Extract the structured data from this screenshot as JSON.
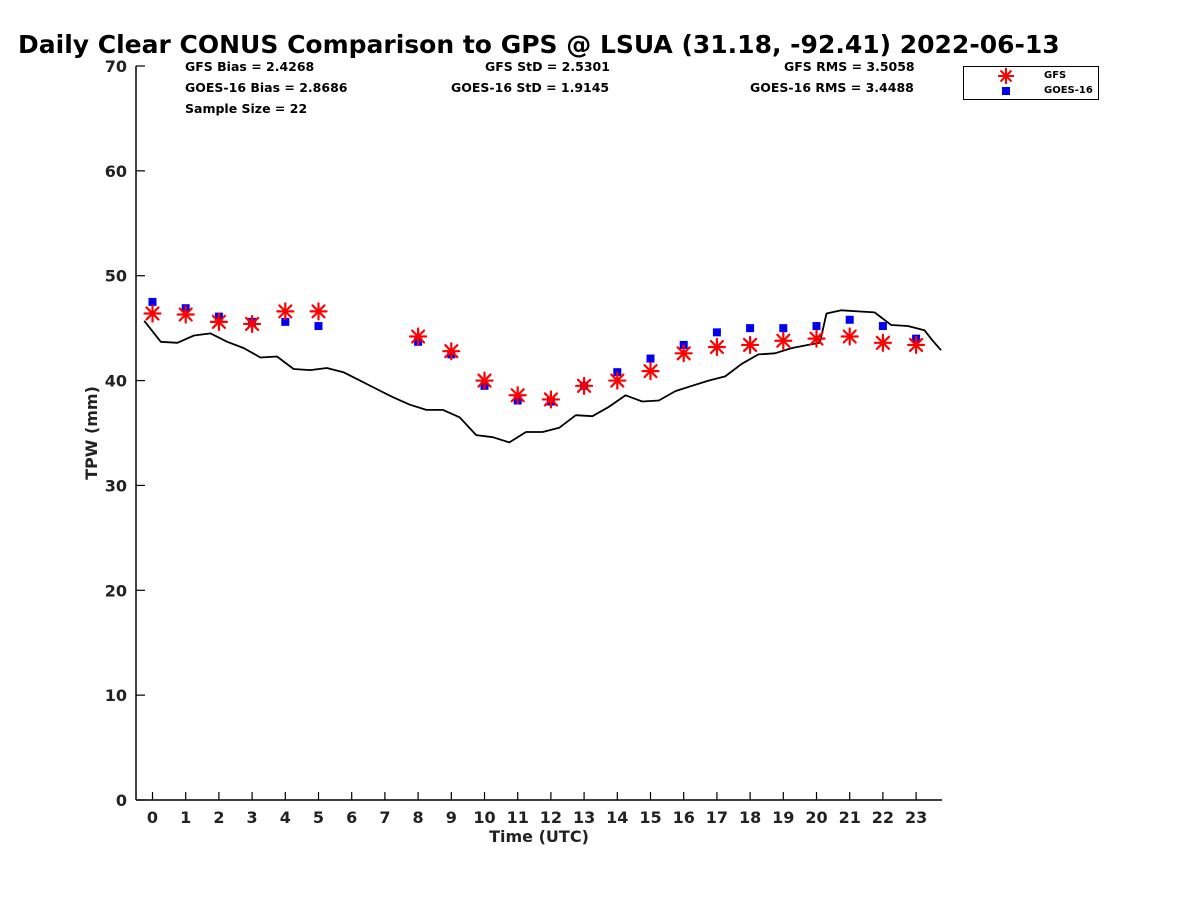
{
  "chart_data": {
    "type": "scatter",
    "title": "Daily Clear CONUS Comparison to GPS @ LSUA (31.18, -92.41) 2022-06-13",
    "xlabel": "Time (UTC)",
    "ylabel": "TPW (mm)",
    "xlim": [
      -0.5,
      23.75
    ],
    "ylim": [
      0,
      70
    ],
    "x_ticks": [
      "0",
      "1",
      "2",
      "3",
      "4",
      "5",
      "6",
      "7",
      "8",
      "9",
      "10",
      "11",
      "12",
      "13",
      "14",
      "15",
      "16",
      "17",
      "18",
      "19",
      "20",
      "21",
      "22",
      "23"
    ],
    "y_ticks": [
      "0",
      "10",
      "20",
      "30",
      "40",
      "50",
      "60",
      "70"
    ],
    "grid": false,
    "legend_position": "top-right",
    "stats": {
      "gfs_bias": "GFS Bias = 2.4268",
      "goes_bias": "GOES-16 Bias = 2.8686",
      "sample_size": "Sample Size = 22",
      "gfs_std": "GFS StD = 2.5301",
      "goes_std": "GOES-16 StD = 1.9145",
      "gfs_rms": "GFS RMS = 3.5058",
      "goes_rms": "GOES-16 RMS = 3.4488"
    },
    "series": [
      {
        "name": "GFS",
        "marker": "asterisk",
        "color": "#ff0000",
        "x": [
          0,
          1,
          2,
          3,
          4,
          5,
          8,
          9,
          10,
          11,
          12,
          13,
          14,
          15,
          16,
          17,
          18,
          19,
          20,
          21,
          22,
          23
        ],
        "y": [
          46.4,
          46.3,
          45.6,
          45.4,
          46.6,
          46.6,
          44.2,
          42.8,
          40.0,
          38.6,
          38.2,
          39.5,
          40.0,
          40.9,
          42.6,
          43.2,
          43.4,
          43.8,
          44.0,
          44.2,
          43.6,
          43.4
        ]
      },
      {
        "name": "GOES-16",
        "marker": "square",
        "color": "#0000ee",
        "x": [
          0,
          1,
          2,
          3,
          4,
          5,
          8,
          9,
          10,
          11,
          12,
          13,
          14,
          15,
          16,
          17,
          18,
          19,
          20,
          21,
          22,
          23
        ],
        "y": [
          47.5,
          46.9,
          46.1,
          45.6,
          45.6,
          45.2,
          43.7,
          42.5,
          39.5,
          38.1,
          38.0,
          39.5,
          40.8,
          42.1,
          43.4,
          44.6,
          45.0,
          45.0,
          45.2,
          45.8,
          45.2,
          44.0
        ]
      },
      {
        "name": "GPS",
        "type": "line",
        "color": "#000000",
        "x": [
          -0.25,
          0.25,
          0.75,
          1.25,
          1.75,
          2.25,
          2.75,
          3.25,
          3.75,
          4.25,
          4.75,
          5.25,
          5.75,
          6.25,
          6.75,
          7.25,
          7.75,
          8.25,
          8.75,
          9.25,
          9.75,
          10.25,
          10.75,
          11.25,
          11.75,
          12.25,
          12.75,
          13.25,
          13.75,
          14.25,
          14.75,
          15.25,
          15.75,
          16.25,
          16.75,
          17.25,
          17.75,
          18.25,
          18.75,
          19.25,
          19.75,
          20.1,
          20.3,
          20.75,
          21.25,
          21.75,
          22.25,
          22.75,
          23.25,
          23.5,
          23.75
        ],
        "y": [
          45.7,
          43.7,
          43.6,
          44.3,
          44.5,
          43.7,
          43.1,
          42.2,
          42.3,
          41.1,
          41.0,
          41.2,
          40.8,
          40.0,
          39.2,
          38.4,
          37.7,
          37.2,
          37.2,
          36.5,
          34.8,
          34.6,
          34.1,
          35.1,
          35.1,
          35.5,
          36.7,
          36.6,
          37.5,
          38.6,
          38.0,
          38.1,
          39.0,
          39.5,
          40.0,
          40.4,
          41.6,
          42.5,
          42.6,
          43.1,
          43.4,
          43.6,
          46.4,
          46.7,
          46.6,
          46.5,
          45.3,
          45.2,
          44.8,
          43.8,
          42.9
        ]
      }
    ]
  },
  "legend": {
    "gfs_label": "GFS",
    "goes_label": "GOES-16"
  }
}
